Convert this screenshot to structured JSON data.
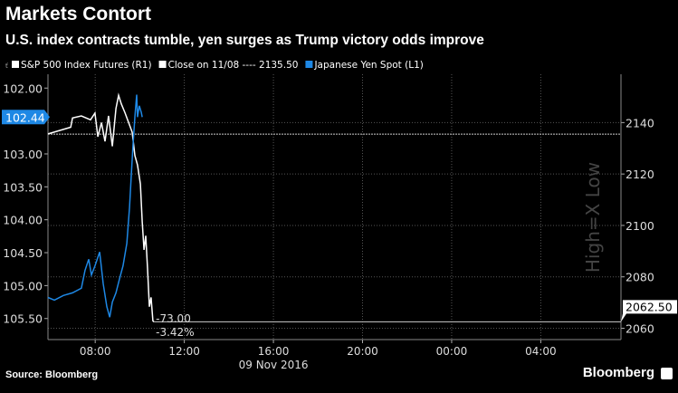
{
  "header": {
    "title": "Markets Contort",
    "subtitle": "U.S. index contracts tumble, yen surges as Trump victory odds improve"
  },
  "footer": {
    "source": "Source: Bloomberg",
    "brand": "Bloomberg"
  },
  "colors": {
    "sp": "#ffffff",
    "yen": "#1e88e5",
    "background": "#000000"
  },
  "chart_data": {
    "type": "line",
    "title": "Markets Contort",
    "watermark": "High=X Low",
    "legend": [
      {
        "label": "S&P 500 Index Futures (R1)",
        "color": "#ffffff"
      },
      {
        "label": "Close on 11/08 ---- 2135.50",
        "color": "#ffffff"
      },
      {
        "label": "Japanese Yen Spot  (L1)",
        "color": "#1e88e5"
      }
    ],
    "legend_position": "top-left",
    "xlabel": "09 Nov 2016",
    "x_unit": "hours since 00:00 09 Nov 2016",
    "xlim": [
      5.88,
      31.6
    ],
    "x_ticks": [
      {
        "v": 8,
        "label": "08:00"
      },
      {
        "v": 12,
        "label": "12:00"
      },
      {
        "v": 16,
        "label": "16:00"
      },
      {
        "v": 20,
        "label": "20:00"
      },
      {
        "v": 24,
        "label": "00:00"
      },
      {
        "v": 28,
        "label": "04:00"
      }
    ],
    "left_axis": {
      "ylim": [
        101.79,
        105.82
      ],
      "inverted": true,
      "ticks": [
        "102.00",
        "103.00",
        "103.50",
        "104.00",
        "104.50",
        "105.00",
        "105.50"
      ],
      "tick_values": [
        102,
        103,
        103.5,
        104,
        104.5,
        105,
        105.5
      ],
      "last_label": "102.44",
      "last_value": 102.44
    },
    "right_axis": {
      "ylim": [
        2055.6,
        2158.8
      ],
      "ticks": [
        "2140",
        "2120",
        "2100",
        "2080",
        "2060"
      ],
      "tick_values": [
        2140,
        2120,
        2100,
        2080,
        2060
      ],
      "last_label": "2062.50",
      "last_value": 2062.5
    },
    "close_line": {
      "value": 2135.5
    },
    "annotation": {
      "change": "-73.00",
      "pct": "-3.42%"
    },
    "series": [
      {
        "name": "S&P 500 Index Futures (R1)",
        "axis": "right",
        "color": "#ffffff",
        "x": [
          5.88,
          6.9,
          6.98,
          7.38,
          7.79,
          7.99,
          8.12,
          8.28,
          8.44,
          8.6,
          8.77,
          8.93,
          9.05,
          9.17,
          9.34,
          9.5,
          9.66,
          9.78,
          9.9,
          10.03,
          10.11,
          10.19,
          10.27,
          10.35,
          10.43,
          10.51,
          10.59,
          10.64
        ],
        "values": [
          2135.6,
          2138.2,
          2141.8,
          2142.6,
          2141.1,
          2143.7,
          2134.5,
          2140,
          2132.7,
          2142.6,
          2130.8,
          2145.5,
          2150.6,
          2147.3,
          2143.7,
          2140,
          2136.3,
          2127.2,
          2123.5,
          2116.1,
          2101.5,
          2090.5,
          2096,
          2083.1,
          2068.4,
          2072,
          2062.9,
          2062.5
        ]
      },
      {
        "name": "Japanese Yen Spot (L1)",
        "axis": "left",
        "color": "#1e88e5",
        "x": [
          5.88,
          6.17,
          6.57,
          6.98,
          7.38,
          7.54,
          7.71,
          7.83,
          7.99,
          8.2,
          8.36,
          8.52,
          8.65,
          8.77,
          8.93,
          9.09,
          9.25,
          9.42,
          9.54,
          9.62,
          9.7,
          9.78,
          9.86,
          9.9,
          9.98,
          10.07,
          10.11
        ],
        "values": [
          105.18,
          105.22,
          105.15,
          105.11,
          105.04,
          104.77,
          104.6,
          104.84,
          104.7,
          104.49,
          104.97,
          105.32,
          105.48,
          105.25,
          105.11,
          104.9,
          104.7,
          104.36,
          103.81,
          103.33,
          102.85,
          102.44,
          102.1,
          102.44,
          102.27,
          102.37,
          102.44
        ]
      }
    ]
  }
}
